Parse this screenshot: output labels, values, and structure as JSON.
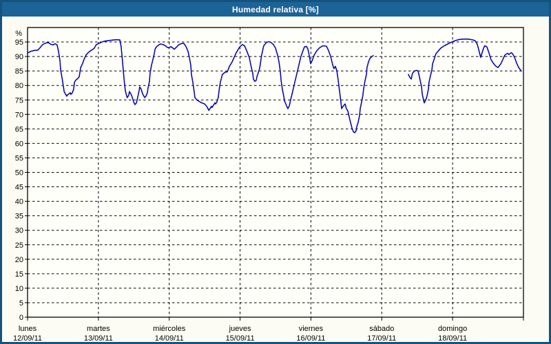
{
  "window": {
    "title": "Humedad relativa [%]"
  },
  "colors": {
    "border": "#15537d",
    "titlebar_bg": "#1c6397",
    "titlebar_text": "#ffffff",
    "background": "#fcfcf4",
    "plot_bg": "#fffffa",
    "grid": "#000000",
    "frame": "#000000",
    "line": "#0a0aae"
  },
  "chart_data": {
    "type": "line",
    "title": "Humedad relativa [%]",
    "ylabel": "%",
    "xlabel": "",
    "grid": "dashed",
    "legend_position": "none",
    "y_axis": {
      "unit": "%",
      "min": 0,
      "max": 100,
      "tick_step": 5,
      "tick_min": 0,
      "tick_max": 95
    },
    "x_axis": {
      "hours_span": 168,
      "days": [
        {
          "name": "lunes",
          "date": "12/09/11"
        },
        {
          "name": "martes",
          "date": "13/09/11"
        },
        {
          "name": "miércoles",
          "date": "14/09/11"
        },
        {
          "name": "jueves",
          "date": "15/09/11"
        },
        {
          "name": "viernes",
          "date": "16/09/11"
        },
        {
          "name": "sábado",
          "date": "17/09/11"
        },
        {
          "name": "domingo",
          "date": "18/09/11"
        }
      ]
    },
    "series": [
      {
        "name": "Humedad relativa",
        "color": "#0a0aae",
        "segments": [
          [
            [
              0.0,
              91.2
            ],
            [
              1.2,
              91.8
            ],
            [
              2.3,
              92.1
            ],
            [
              3.5,
              92.2
            ],
            [
              4.2,
              93.0
            ],
            [
              5.1,
              94.1
            ],
            [
              6.1,
              94.6
            ],
            [
              7.0,
              94.8
            ],
            [
              7.9,
              94.2
            ],
            [
              8.6,
              94.0
            ],
            [
              9.3,
              94.4
            ],
            [
              10.0,
              94.0
            ],
            [
              10.5,
              91.7
            ],
            [
              11.0,
              88.5
            ],
            [
              11.2,
              85.4
            ],
            [
              11.7,
              82.6
            ],
            [
              12.1,
              79.9
            ],
            [
              12.4,
              77.9
            ],
            [
              12.8,
              77.1
            ],
            [
              13.3,
              76.3
            ],
            [
              13.5,
              76.7
            ],
            [
              14.0,
              77.1
            ],
            [
              14.5,
              77.5
            ],
            [
              14.7,
              76.9
            ],
            [
              15.2,
              77.5
            ],
            [
              15.6,
              78.7
            ],
            [
              15.9,
              81.1
            ],
            [
              16.3,
              81.8
            ],
            [
              17.0,
              82.4
            ],
            [
              17.5,
              83.0
            ],
            [
              18.0,
              86.2
            ],
            [
              18.7,
              87.7
            ],
            [
              19.1,
              88.9
            ],
            [
              19.8,
              90.5
            ],
            [
              20.5,
              91.3
            ],
            [
              21.5,
              92.1
            ],
            [
              22.2,
              92.5
            ],
            [
              22.6,
              92.9
            ],
            [
              23.3,
              94.1
            ],
            [
              24.0,
              94.5
            ],
            [
              25.2,
              95.0
            ],
            [
              26.1,
              95.3
            ],
            [
              27.5,
              95.5
            ],
            [
              29.2,
              95.7
            ],
            [
              30.3,
              95.8
            ],
            [
              31.3,
              95.7
            ],
            [
              31.7,
              93.3
            ],
            [
              32.2,
              88.0
            ],
            [
              32.7,
              82.2
            ],
            [
              33.1,
              78.3
            ],
            [
              33.6,
              76.3
            ],
            [
              33.8,
              75.8
            ],
            [
              34.3,
              76.7
            ],
            [
              34.5,
              77.9
            ],
            [
              35.0,
              77.1
            ],
            [
              35.5,
              75.9
            ],
            [
              35.9,
              74.4
            ],
            [
              36.4,
              73.4
            ],
            [
              36.9,
              74.0
            ],
            [
              37.3,
              75.9
            ],
            [
              37.8,
              78.3
            ],
            [
              38.0,
              79.5
            ],
            [
              38.5,
              78.7
            ],
            [
              39.0,
              77.1
            ],
            [
              39.4,
              76.3
            ],
            [
              39.7,
              75.8
            ],
            [
              40.1,
              76.3
            ],
            [
              40.6,
              77.5
            ],
            [
              40.8,
              79.1
            ],
            [
              41.3,
              81.4
            ],
            [
              41.5,
              84.2
            ],
            [
              42.0,
              87.0
            ],
            [
              42.5,
              89.0
            ],
            [
              42.9,
              90.9
            ],
            [
              43.2,
              92.5
            ],
            [
              43.6,
              93.3
            ],
            [
              44.3,
              93.9
            ],
            [
              45.0,
              94.3
            ],
            [
              46.0,
              94.1
            ],
            [
              46.7,
              93.7
            ],
            [
              47.4,
              93.1
            ],
            [
              47.8,
              93.0
            ],
            [
              48.5,
              93.4
            ],
            [
              49.0,
              93.1
            ],
            [
              49.7,
              92.5
            ],
            [
              50.6,
              93.4
            ],
            [
              51.3,
              94.1
            ],
            [
              52.3,
              94.5
            ],
            [
              53.0,
              94.5
            ],
            [
              53.7,
              93.4
            ],
            [
              54.4,
              91.7
            ],
            [
              54.8,
              89.7
            ],
            [
              55.3,
              87.0
            ],
            [
              55.5,
              83.8
            ],
            [
              56.0,
              81.1
            ],
            [
              56.5,
              77.5
            ],
            [
              56.7,
              75.8
            ],
            [
              57.2,
              75.2
            ],
            [
              57.6,
              74.8
            ],
            [
              58.3,
              74.4
            ],
            [
              59.0,
              74.0
            ],
            [
              60.0,
              73.6
            ],
            [
              60.7,
              72.8
            ],
            [
              61.1,
              72.0
            ],
            [
              61.4,
              71.4
            ],
            [
              61.8,
              72.0
            ],
            [
              62.3,
              72.8
            ],
            [
              62.5,
              72.4
            ],
            [
              63.0,
              73.2
            ],
            [
              63.5,
              74.0
            ],
            [
              63.7,
              73.6
            ],
            [
              64.2,
              74.4
            ],
            [
              64.6,
              75.9
            ],
            [
              64.9,
              78.3
            ],
            [
              65.3,
              81.1
            ],
            [
              65.8,
              83.0
            ],
            [
              66.0,
              83.8
            ],
            [
              67.0,
              84.6
            ],
            [
              67.7,
              84.7
            ],
            [
              68.4,
              86.6
            ],
            [
              69.3,
              88.1
            ],
            [
              70.7,
              91.3
            ],
            [
              71.9,
              93.3
            ],
            [
              72.8,
              94.1
            ],
            [
              73.5,
              93.7
            ],
            [
              74.2,
              92.1
            ],
            [
              75.1,
              89.7
            ],
            [
              75.8,
              86.2
            ],
            [
              76.3,
              84.2
            ],
            [
              76.5,
              82.2
            ],
            [
              77.0,
              81.4
            ],
            [
              77.5,
              81.8
            ],
            [
              77.7,
              83.0
            ],
            [
              78.6,
              85.8
            ],
            [
              79.3,
              90.5
            ],
            [
              80.0,
              93.7
            ],
            [
              81.0,
              94.9
            ],
            [
              81.7,
              95.1
            ],
            [
              82.4,
              94.9
            ],
            [
              83.3,
              94.1
            ],
            [
              84.0,
              92.9
            ],
            [
              84.7,
              90.5
            ],
            [
              85.2,
              88.1
            ],
            [
              85.6,
              85.0
            ],
            [
              85.9,
              81.8
            ],
            [
              86.3,
              78.7
            ],
            [
              86.8,
              76.3
            ],
            [
              87.0,
              74.8
            ],
            [
              87.5,
              73.6
            ],
            [
              87.7,
              73.0
            ],
            [
              88.2,
              72.0
            ],
            [
              88.7,
              73.0
            ],
            [
              89.1,
              75.0
            ],
            [
              89.8,
              77.9
            ],
            [
              90.5,
              81.0
            ],
            [
              91.2,
              84.0
            ],
            [
              91.9,
              87.0
            ],
            [
              92.6,
              90.0
            ],
            [
              93.3,
              92.0
            ],
            [
              93.8,
              93.3
            ],
            [
              94.5,
              93.5
            ],
            [
              95.0,
              92.5
            ],
            [
              95.4,
              90.5
            ],
            [
              95.9,
              87.5
            ],
            [
              96.4,
              88.5
            ],
            [
              97.1,
              90.5
            ],
            [
              98.0,
              92.0
            ],
            [
              98.9,
              93.0
            ],
            [
              99.9,
              93.6
            ],
            [
              100.6,
              93.7
            ],
            [
              101.3,
              93.5
            ],
            [
              102.0,
              92.0
            ],
            [
              102.7,
              90.0
            ],
            [
              103.4,
              87.0
            ],
            [
              103.8,
              85.8
            ],
            [
              104.3,
              86.6
            ],
            [
              104.8,
              85.0
            ],
            [
              105.2,
              82.0
            ],
            [
              105.7,
              78.0
            ],
            [
              106.2,
              74.0
            ],
            [
              106.4,
              72.0
            ],
            [
              106.9,
              72.8
            ],
            [
              107.6,
              73.6
            ],
            [
              108.0,
              72.0
            ],
            [
              108.5,
              71.2
            ],
            [
              109.2,
              68.1
            ],
            [
              109.9,
              65.3
            ],
            [
              110.4,
              64.0
            ],
            [
              110.8,
              63.7
            ],
            [
              111.3,
              64.3
            ],
            [
              111.5,
              65.7
            ],
            [
              112.0,
              67.3
            ],
            [
              112.5,
              69.7
            ],
            [
              112.7,
              72.0
            ],
            [
              113.2,
              74.4
            ],
            [
              113.6,
              76.7
            ],
            [
              113.9,
              79.1
            ],
            [
              114.3,
              81.5
            ],
            [
              114.8,
              83.8
            ],
            [
              115.0,
              86.2
            ],
            [
              115.5,
              88.1
            ],
            [
              116.0,
              89.3
            ],
            [
              116.7,
              90.0
            ],
            [
              117.1,
              90.3
            ]
          ],
          [
            [
              129.0,
              83.8
            ],
            [
              129.5,
              82.8
            ],
            [
              130.0,
              82.2
            ],
            [
              130.4,
              84.2
            ],
            [
              131.1,
              85.0
            ],
            [
              131.8,
              85.2
            ],
            [
              132.3,
              85.0
            ],
            [
              133.0,
              81.8
            ],
            [
              133.5,
              79.5
            ],
            [
              133.7,
              77.1
            ],
            [
              134.2,
              74.8
            ],
            [
              134.4,
              74.0
            ],
            [
              134.6,
              74.4
            ],
            [
              135.1,
              75.5
            ],
            [
              135.3,
              76.3
            ],
            [
              135.8,
              78.7
            ],
            [
              136.0,
              81.1
            ],
            [
              136.5,
              83.4
            ],
            [
              137.0,
              85.4
            ],
            [
              137.2,
              87.4
            ],
            [
              137.7,
              88.9
            ],
            [
              138.1,
              90.2
            ],
            [
              138.4,
              91.0
            ],
            [
              139.3,
              92.1
            ],
            [
              140.0,
              92.9
            ],
            [
              141.2,
              93.7
            ],
            [
              142.3,
              94.3
            ],
            [
              143.5,
              94.9
            ],
            [
              144.0,
              95.1
            ],
            [
              144.7,
              95.4
            ],
            [
              146.3,
              95.9
            ],
            [
              147.7,
              96.0
            ],
            [
              149.3,
              96.0
            ],
            [
              151.0,
              95.7
            ],
            [
              151.7,
              95.4
            ],
            [
              152.4,
              94.1
            ],
            [
              152.8,
              92.5
            ],
            [
              153.3,
              90.5
            ],
            [
              153.5,
              89.7
            ],
            [
              154.0,
              91.3
            ],
            [
              154.5,
              92.9
            ],
            [
              154.9,
              93.7
            ],
            [
              155.6,
              93.3
            ],
            [
              156.3,
              91.3
            ],
            [
              157.0,
              88.9
            ],
            [
              158.0,
              87.4
            ],
            [
              158.7,
              86.6
            ],
            [
              159.4,
              86.2
            ],
            [
              160.3,
              87.4
            ],
            [
              161.0,
              88.9
            ],
            [
              161.7,
              90.5
            ],
            [
              162.6,
              91.1
            ],
            [
              163.1,
              90.7
            ],
            [
              163.8,
              91.3
            ],
            [
              164.3,
              91.0
            ],
            [
              165.0,
              89.7
            ],
            [
              165.7,
              87.7
            ],
            [
              166.4,
              86.2
            ],
            [
              167.1,
              85.2
            ],
            [
              167.3,
              85.0
            ]
          ]
        ]
      }
    ]
  }
}
